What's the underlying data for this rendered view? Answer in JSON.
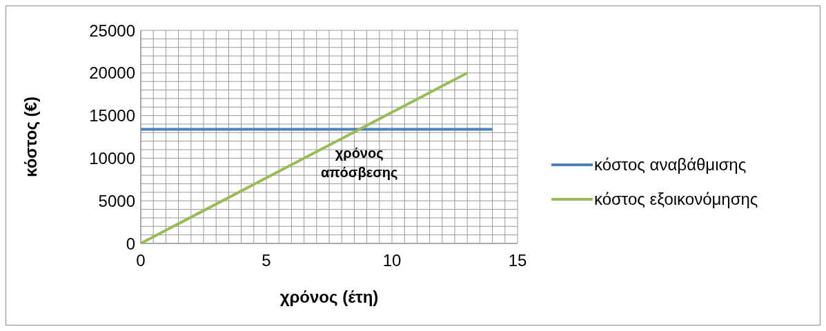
{
  "chart_data": {
    "type": "line",
    "xlabel": "χρόνος (έτη)",
    "ylabel": "κόστος (€)",
    "xlim": [
      0,
      15
    ],
    "ylim": [
      0,
      25000
    ],
    "xticks": [
      0,
      {
        "value": 0.5,
        "label": null
      },
      {
        "value": 1,
        "label": null
      },
      {
        "value": 1.5,
        "label": null
      },
      {
        "value": 2,
        "label": null
      },
      {
        "value": 2.5,
        "label": null
      },
      {
        "value": 3,
        "label": null
      },
      {
        "value": 3.5,
        "label": null
      },
      {
        "value": 4,
        "label": null
      },
      {
        "value": 4.5,
        "label": null
      },
      5,
      {
        "value": 5.5,
        "label": null
      },
      {
        "value": 6,
        "label": null
      },
      {
        "value": 6.5,
        "label": null
      },
      {
        "value": 7,
        "label": null
      },
      {
        "value": 7.5,
        "label": null
      },
      {
        "value": 8,
        "label": null
      },
      {
        "value": 8.5,
        "label": null
      },
      {
        "value": 9,
        "label": null
      },
      {
        "value": 9.5,
        "label": null
      },
      10,
      {
        "value": 10.5,
        "label": null
      },
      {
        "value": 11,
        "label": null
      },
      {
        "value": 11.5,
        "label": null
      },
      {
        "value": 12,
        "label": null
      },
      {
        "value": 12.5,
        "label": null
      },
      {
        "value": 13,
        "label": null
      },
      {
        "value": 13.5,
        "label": null
      },
      {
        "value": 14,
        "label": null
      },
      {
        "value": 14.5,
        "label": null
      },
      15
    ],
    "yticks": [
      0,
      {
        "value": 1000,
        "label": null
      },
      {
        "value": 2000,
        "label": null
      },
      {
        "value": 3000,
        "label": null
      },
      {
        "value": 4000,
        "label": null
      },
      5000,
      {
        "value": 6000,
        "label": null
      },
      {
        "value": 7000,
        "label": null
      },
      {
        "value": 8000,
        "label": null
      },
      {
        "value": 9000,
        "label": null
      },
      10000,
      {
        "value": 11000,
        "label": null
      },
      {
        "value": 12000,
        "label": null
      },
      {
        "value": 13000,
        "label": null
      },
      {
        "value": 14000,
        "label": null
      },
      15000,
      {
        "value": 16000,
        "label": null
      },
      {
        "value": 17000,
        "label": null
      },
      {
        "value": 18000,
        "label": null
      },
      {
        "value": 19000,
        "label": null
      },
      20000,
      {
        "value": 21000,
        "label": null
      },
      {
        "value": 22000,
        "label": null
      },
      {
        "value": 23000,
        "label": null
      },
      {
        "value": 24000,
        "label": null
      },
      25000
    ],
    "grid": true,
    "legend": "right",
    "marker": "none",
    "line_style": "solid",
    "series": [
      {
        "name": "κόστος αναβάθμισης",
        "color": "#4f81bd",
        "x": [
          0,
          14
        ],
        "values": [
          13400,
          13400
        ]
      },
      {
        "name": "κόστος εξοικονόμησης",
        "color": "#9bbb59",
        "x": [
          0,
          13
        ],
        "values": [
          0,
          20000
        ]
      }
    ],
    "annotations": [
      {
        "text": "χρόνος απόσβεσης",
        "x": 8.7,
        "y": 13400
      }
    ]
  }
}
